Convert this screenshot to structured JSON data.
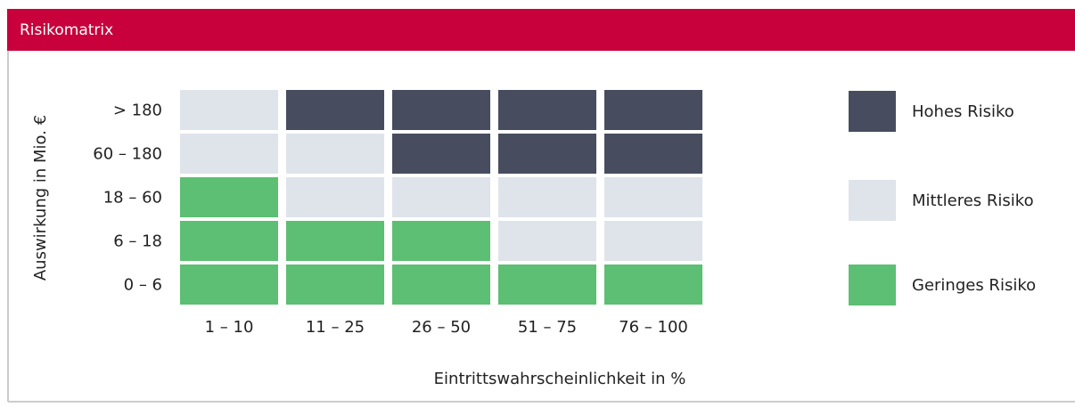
{
  "header": {
    "title": "Risikomatrix"
  },
  "matrix": {
    "y_label": "Auswirkung in Mio. €",
    "x_label": "Eintrittswahrscheinlichkeit in %",
    "rows": [
      "> 180",
      "60 – 180",
      "18 – 60",
      "6 – 18",
      "0 – 6"
    ],
    "columns": [
      "1 – 10",
      "11 – 25",
      "26 – 50",
      "51 – 75",
      "76 – 100"
    ],
    "cells": [
      [
        1,
        0,
        0,
        0,
        0
      ],
      [
        1,
        1,
        0,
        0,
        0
      ],
      [
        2,
        1,
        1,
        1,
        1
      ],
      [
        2,
        2,
        2,
        1,
        1
      ],
      [
        2,
        2,
        2,
        2,
        2
      ]
    ]
  },
  "legend": [
    {
      "name": "Hohes Risiko",
      "color": "#474d5e"
    },
    {
      "name": "Mittleres Risiko",
      "color": "#dfe3ea"
    },
    {
      "name": "Geringes Risiko",
      "color": "#5cbf73"
    }
  ]
}
